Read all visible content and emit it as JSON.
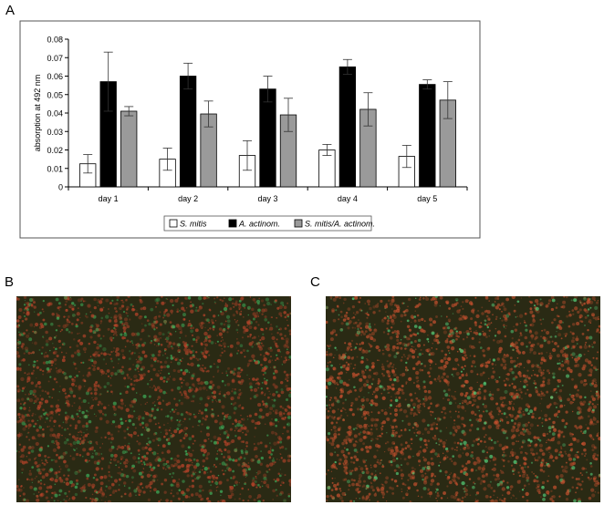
{
  "panels": {
    "a_label": "A",
    "b_label": "B",
    "c_label": "C"
  },
  "chart_data": {
    "type": "bar",
    "title": "",
    "xlabel": "",
    "ylabel": "absorption at 492 nm",
    "ylim": [
      0,
      0.08
    ],
    "yticks": [
      "0",
      "0.01",
      "0.02",
      "0.03",
      "0.04",
      "0.05",
      "0.06",
      "0.07",
      "0.08"
    ],
    "categories": [
      "day 1",
      "day 2",
      "day 3",
      "day 4",
      "day 5"
    ],
    "grid": false,
    "legend_position": "bottom",
    "series": [
      {
        "name": "S. mitis",
        "color": "#ffffff",
        "values": [
          0.0125,
          0.015,
          0.017,
          0.02,
          0.0165
        ],
        "errors": [
          0.005,
          0.006,
          0.008,
          0.003,
          0.006
        ]
      },
      {
        "name": "A. actinom.",
        "color": "#000000",
        "values": [
          0.057,
          0.06,
          0.053,
          0.065,
          0.0555
        ],
        "errors": [
          0.016,
          0.007,
          0.007,
          0.004,
          0.0025
        ]
      },
      {
        "name": "S. mitis/A. actinom.",
        "color": "#9a9a9a",
        "values": [
          0.041,
          0.0395,
          0.039,
          0.042,
          0.047
        ],
        "errors": [
          0.0025,
          0.007,
          0.009,
          0.009,
          0.01
        ]
      }
    ]
  },
  "micrographs": {
    "b": {
      "description_colors": [
        "#2a2a14",
        "#b8442a",
        "#3fae5a"
      ],
      "green_fraction": 0.45
    },
    "c": {
      "description_colors": [
        "#2a2a14",
        "#c4502e",
        "#55d07a"
      ],
      "green_fraction": 0.25
    }
  }
}
